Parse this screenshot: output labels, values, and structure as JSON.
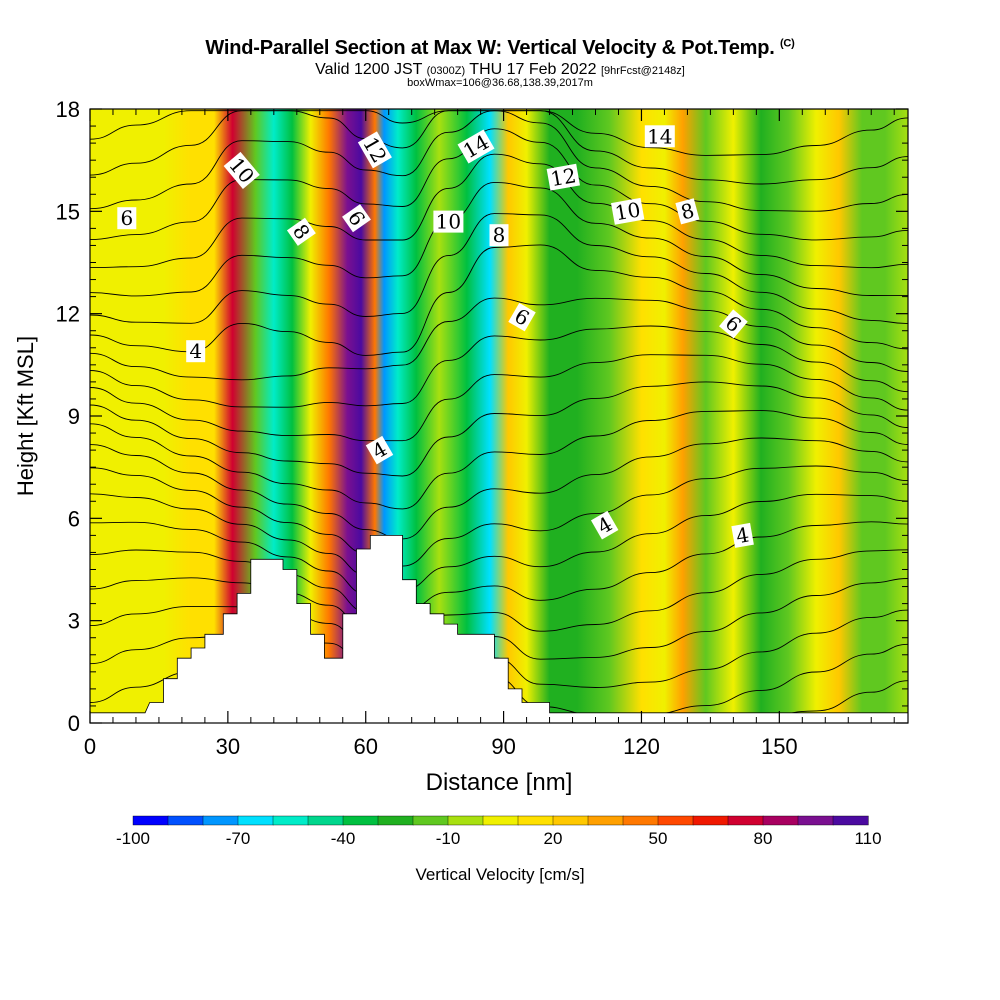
{
  "title": "Wind-Parallel Section at Max W: Vertical Velocity & Pot.Temp.",
  "copyright": "(C)",
  "subtitle": {
    "valid": "Valid 1200 JST",
    "utc": "(0300Z)",
    "date": "THU 17 Feb 2022",
    "forecast": "[9hrFcst@2148z]"
  },
  "box_line": "boxWmax=106@36.68,138.39,2017m",
  "chart_data": {
    "type": "heatmap",
    "xlabel": "Distance [nm]",
    "ylabel": "Height [Kft MSL]",
    "xlim": [
      0,
      178
    ],
    "ylim": [
      0,
      18
    ],
    "x_ticks": [
      0,
      30,
      60,
      90,
      120,
      150
    ],
    "y_ticks": [
      0,
      3,
      6,
      9,
      12,
      15,
      18
    ],
    "colorbar": {
      "label": "Vertical Velocity [cm/s]",
      "tick_labels": [
        "-100",
        "-70",
        "-40",
        "-10",
        "20",
        "50",
        "80",
        "110"
      ],
      "colors": [
        "#0000ff",
        "#0050ff",
        "#0096ff",
        "#00e0ff",
        "#00ecc8",
        "#00d68c",
        "#00c040",
        "#20b020",
        "#60c820",
        "#a8e010",
        "#f0f000",
        "#ffe000",
        "#ffc800",
        "#ffa000",
        "#ff7800",
        "#ff4800",
        "#f01800",
        "#d00030",
        "#a80060",
        "#7a1090",
        "#4b0aa0"
      ]
    },
    "columns": [
      {
        "x": 0,
        "w": 2
      },
      {
        "x": 4,
        "w": 3
      },
      {
        "x": 10,
        "w": 4
      },
      {
        "x": 16,
        "w": 9
      },
      {
        "x": 22,
        "w": 17
      },
      {
        "x": 27,
        "w": 12
      },
      {
        "x": 31,
        "w": 70
      },
      {
        "x": 36,
        "w": -20
      },
      {
        "x": 40,
        "w": -60
      },
      {
        "x": 44,
        "w": -40
      },
      {
        "x": 48,
        "w": 5
      },
      {
        "x": 52,
        "w": 40
      },
      {
        "x": 56,
        "w": 90
      },
      {
        "x": 59,
        "w": 105
      },
      {
        "x": 62,
        "w": 40
      },
      {
        "x": 64,
        "w": -75
      },
      {
        "x": 67,
        "w": -55
      },
      {
        "x": 71,
        "w": -35
      },
      {
        "x": 76,
        "w": -10
      },
      {
        "x": 82,
        "w": -40
      },
      {
        "x": 87,
        "w": -65
      },
      {
        "x": 91,
        "w": 25
      },
      {
        "x": 95,
        "w": 0
      },
      {
        "x": 100,
        "w": -25
      },
      {
        "x": 106,
        "w": -30
      },
      {
        "x": 113,
        "w": -12
      },
      {
        "x": 120,
        "w": 12
      },
      {
        "x": 125,
        "w": 8
      },
      {
        "x": 129,
        "w": 35
      },
      {
        "x": 134,
        "w": -15
      },
      {
        "x": 140,
        "w": 2
      },
      {
        "x": 146,
        "w": -28
      },
      {
        "x": 152,
        "w": -20
      },
      {
        "x": 158,
        "w": 5
      },
      {
        "x": 163,
        "w": 22
      },
      {
        "x": 168,
        "w": -18
      },
      {
        "x": 173,
        "w": -12
      },
      {
        "x": 178,
        "w": -8
      }
    ],
    "terrain": [
      [
        0,
        0.3
      ],
      [
        12,
        0.3
      ],
      [
        13,
        0.6
      ],
      [
        16,
        0.6
      ],
      [
        16,
        1.3
      ],
      [
        19,
        1.3
      ],
      [
        19,
        1.9
      ],
      [
        22,
        1.9
      ],
      [
        22,
        2.2
      ],
      [
        25,
        2.2
      ],
      [
        25,
        2.6
      ],
      [
        29,
        2.6
      ],
      [
        29,
        3.2
      ],
      [
        32,
        3.2
      ],
      [
        32,
        3.8
      ],
      [
        35,
        3.8
      ],
      [
        35,
        4.8
      ],
      [
        42,
        4.8
      ],
      [
        42,
        4.5
      ],
      [
        45,
        4.5
      ],
      [
        45,
        3.5
      ],
      [
        48,
        3.5
      ],
      [
        48,
        2.6
      ],
      [
        51,
        2.6
      ],
      [
        51,
        1.9
      ],
      [
        55,
        1.9
      ],
      [
        55,
        3.2
      ],
      [
        58,
        3.2
      ],
      [
        58,
        5.1
      ],
      [
        61,
        5.1
      ],
      [
        61,
        5.5
      ],
      [
        68,
        5.5
      ],
      [
        68,
        4.2
      ],
      [
        71,
        4.2
      ],
      [
        71,
        3.5
      ],
      [
        74,
        3.5
      ],
      [
        74,
        3.2
      ],
      [
        77,
        3.2
      ],
      [
        77,
        2.9
      ],
      [
        80,
        2.9
      ],
      [
        80,
        2.6
      ],
      [
        88,
        2.6
      ],
      [
        88,
        1.9
      ],
      [
        91,
        1.9
      ],
      [
        91,
        1.0
      ],
      [
        94,
        1.0
      ],
      [
        94,
        0.6
      ],
      [
        100,
        0.6
      ],
      [
        100,
        0.3
      ],
      [
        178,
        0.3
      ]
    ],
    "contour_labels": [
      {
        "text": "6",
        "x": 8,
        "y": 14.8,
        "angle": 0
      },
      {
        "text": "10",
        "x": 33,
        "y": 16.2,
        "angle": 50
      },
      {
        "text": "8",
        "x": 46,
        "y": 14.4,
        "angle": 55
      },
      {
        "text": "12",
        "x": 62,
        "y": 16.8,
        "angle": 60
      },
      {
        "text": "6",
        "x": 58,
        "y": 14.8,
        "angle": 55
      },
      {
        "text": "14",
        "x": 84,
        "y": 16.9,
        "angle": -30
      },
      {
        "text": "10",
        "x": 78,
        "y": 14.7,
        "angle": 0
      },
      {
        "text": "8",
        "x": 89,
        "y": 14.3,
        "angle": 0
      },
      {
        "text": "12",
        "x": 103,
        "y": 16.0,
        "angle": -10
      },
      {
        "text": "14",
        "x": 124,
        "y": 17.2,
        "angle": 0
      },
      {
        "text": "10",
        "x": 117,
        "y": 15.0,
        "angle": -10
      },
      {
        "text": "8",
        "x": 130,
        "y": 15.0,
        "angle": -15
      },
      {
        "text": "6",
        "x": 94,
        "y": 11.9,
        "angle": 30
      },
      {
        "text": "4",
        "x": 23,
        "y": 10.9,
        "angle": 0
      },
      {
        "text": "6",
        "x": 140,
        "y": 11.7,
        "angle": 40
      },
      {
        "text": "4",
        "x": 63,
        "y": 8.0,
        "angle": -30
      },
      {
        "text": "4",
        "x": 112,
        "y": 5.8,
        "angle": -30
      },
      {
        "text": "4",
        "x": 142,
        "y": 5.5,
        "angle": -10
      }
    ]
  }
}
